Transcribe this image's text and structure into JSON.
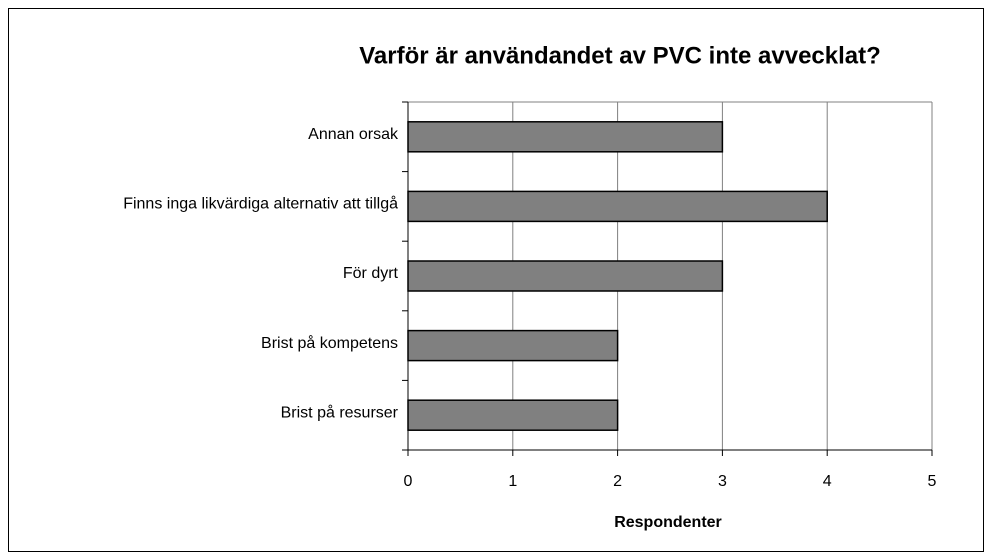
{
  "chart_data": {
    "type": "bar",
    "orientation": "horizontal",
    "title": "Varför är användandet av PVC inte avvecklat?",
    "x_label": "Respondenter",
    "categories": [
      "Annan orsak",
      "Finns inga likvärdiga alternativ att tillgå",
      "För dyrt",
      "Brist på kompetens",
      "Brist på resurser"
    ],
    "values": [
      3,
      4,
      3,
      2,
      2
    ],
    "color": "#808080",
    "xlim": [
      0,
      5
    ],
    "xticks": [
      0,
      1,
      2,
      3,
      4,
      5
    ],
    "grid": true
  }
}
